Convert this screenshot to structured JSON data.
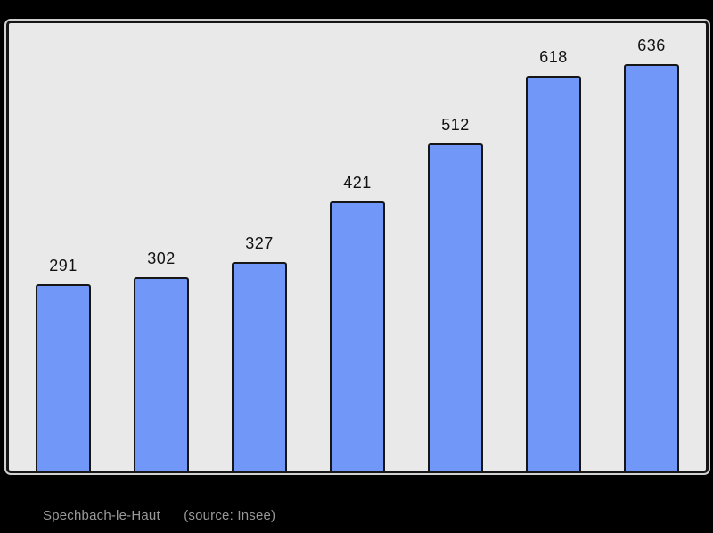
{
  "chart_data": {
    "type": "bar",
    "values": [
      291,
      302,
      327,
      421,
      512,
      618,
      636
    ],
    "data_labels": [
      "291",
      "302",
      "327",
      "421",
      "512",
      "618",
      "636"
    ],
    "title": "Spechbach-le-Haut",
    "xlabel": "",
    "ylabel": "",
    "ylim": [
      0,
      700
    ],
    "grid": false,
    "legend": "none",
    "colors": {
      "bar_fill": "#7197f9",
      "bar_border": "#161616",
      "plot_background": "#e9e9e9",
      "page_background": "#000000",
      "value_label": "#111111",
      "footer_text": "#999999"
    }
  },
  "footer": {
    "title": "Spechbach-le-Haut",
    "source": "(source: Insee)"
  }
}
